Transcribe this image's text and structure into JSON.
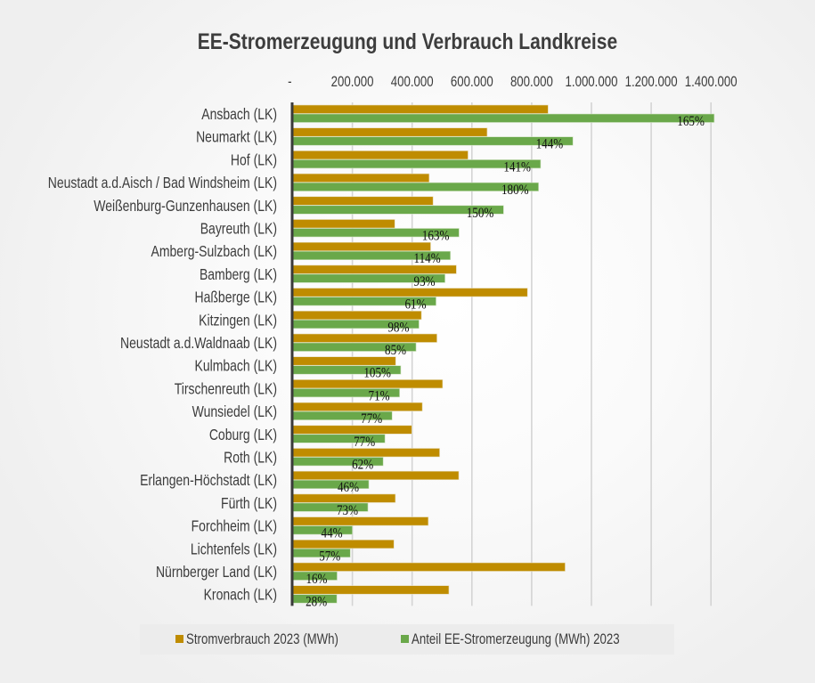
{
  "chart_data": {
    "type": "bar",
    "orientation": "horizontal",
    "title": "EE-Stromerzeugung und Verbrauch Landkreise",
    "xlabel": "",
    "ylabel": "",
    "xlim": [
      0,
      1400000
    ],
    "x_ticks": [
      0,
      200000,
      400000,
      600000,
      800000,
      1000000,
      1200000,
      1400000
    ],
    "x_tick_labels": [
      "-",
      "200.000",
      "400.000",
      "600.000",
      "800.000",
      "1.000.000",
      "1.200.000",
      "1.400.000"
    ],
    "x_axis_position": "top",
    "grid": true,
    "legend_position": "bottom",
    "categories": [
      "Ansbach (LK)",
      "Neumarkt (LK)",
      "Hof (LK)",
      "Neustadt a.d.Aisch / Bad Windsheim (LK)",
      "Weißenburg-Gunzenhausen (LK)",
      "Bayreuth (LK)",
      "Amberg-Sulzbach (LK)",
      "Bamberg (LK)",
      "Haßberge (LK)",
      "Kitzingen (LK)",
      "Neustadt a.d.Waldnaab (LK)",
      "Kulmbach (LK)",
      "Tirschenreuth (LK)",
      "Wunsiedel (LK)",
      "Coburg (LK)",
      "Roth (LK)",
      "Erlangen-Höchstadt (LK)",
      "Fürth (LK)",
      "Forchheim (LK)",
      "Lichtenfels (LK)",
      "Nürnberger Land (LK)",
      "Kronach (LK)"
    ],
    "series": [
      {
        "name": "Stromverbrauch 2023 (MWh)",
        "color": "#bf8c00",
        "values": [
          855000,
          651000,
          587000,
          457000,
          470000,
          342000,
          462000,
          548000,
          786000,
          431000,
          483000,
          345000,
          502000,
          434000,
          399000,
          492000,
          556000,
          344000,
          454000,
          339000,
          912000,
          523000
        ]
      },
      {
        "name": "Anteil EE-Stromerzeugung (MWh) 2023",
        "color": "#6aa84a",
        "values": [
          1411000,
          938000,
          830000,
          823000,
          706000,
          557000,
          528000,
          510000,
          480000,
          423000,
          413000,
          362000,
          358000,
          333000,
          309000,
          303000,
          255000,
          252000,
          200000,
          193000,
          149000,
          148000
        ],
        "data_labels": [
          "165%",
          "144%",
          "141%",
          "180%",
          "150%",
          "163%",
          "114%",
          "93%",
          "61%",
          "98%",
          "85%",
          "105%",
          "71%",
          "77%",
          "77%",
          "62%",
          "46%",
          "73%",
          "44%",
          "57%",
          "16%",
          "28%"
        ]
      }
    ]
  },
  "colors": {
    "axis": "#3a3a3a",
    "grid": "#d4d4d4",
    "text": "#3c3c3c"
  }
}
